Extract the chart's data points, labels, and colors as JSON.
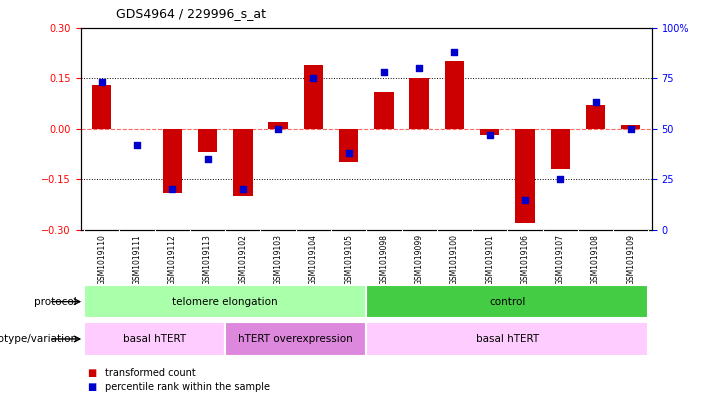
{
  "title": "GDS4964 / 229996_s_at",
  "samples": [
    "GSM1019110",
    "GSM1019111",
    "GSM1019112",
    "GSM1019113",
    "GSM1019102",
    "GSM1019103",
    "GSM1019104",
    "GSM1019105",
    "GSM1019098",
    "GSM1019099",
    "GSM1019100",
    "GSM1019101",
    "GSM1019106",
    "GSM1019107",
    "GSM1019108",
    "GSM1019109"
  ],
  "bar_values": [
    0.13,
    0.0,
    -0.19,
    -0.07,
    -0.2,
    0.02,
    0.19,
    -0.1,
    0.11,
    0.15,
    0.2,
    -0.02,
    -0.28,
    -0.12,
    0.07,
    0.01
  ],
  "dot_values": [
    73,
    42,
    20,
    35,
    20,
    50,
    75,
    38,
    78,
    80,
    88,
    47,
    15,
    25,
    63,
    50
  ],
  "bar_color": "#cc0000",
  "dot_color": "#0000cc",
  "zero_line_color": "#ff6666",
  "ylim_left": [
    -0.3,
    0.3
  ],
  "ylim_right": [
    0,
    100
  ],
  "yticks_left": [
    -0.3,
    -0.15,
    0.0,
    0.15,
    0.3
  ],
  "yticks_right": [
    0,
    25,
    50,
    75,
    100
  ],
  "ytick_labels_right": [
    "0",
    "25",
    "50",
    "75",
    "100%"
  ],
  "protocol_labels": [
    {
      "text": "telomere elongation",
      "start": 0,
      "end": 7,
      "color": "#aaffaa"
    },
    {
      "text": "control",
      "start": 8,
      "end": 15,
      "color": "#44cc44"
    }
  ],
  "genotype_labels": [
    {
      "text": "basal hTERT",
      "start": 0,
      "end": 3,
      "color": "#ffccff"
    },
    {
      "text": "hTERT overexpression",
      "start": 4,
      "end": 7,
      "color": "#dd88dd"
    },
    {
      "text": "basal hTERT",
      "start": 8,
      "end": 15,
      "color": "#ffccff"
    }
  ],
  "legend_items": [
    {
      "label": "transformed count",
      "color": "#cc0000"
    },
    {
      "label": "percentile rank within the sample",
      "color": "#0000cc"
    }
  ],
  "bg_color": "#ffffff",
  "tick_area_bg": "#c8c8c8",
  "cell_border_color": "#ffffff"
}
